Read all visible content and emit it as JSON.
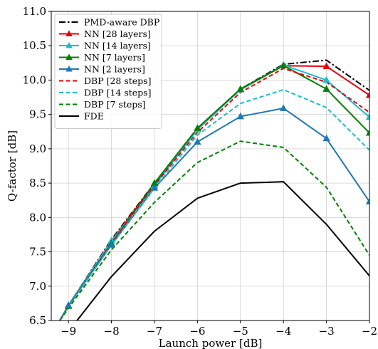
{
  "chart_data": {
    "type": "line",
    "title": "",
    "xlabel": "Launch power [dB]",
    "ylabel": "Q-factor [dB]",
    "xlim": [
      -9.4,
      -2
    ],
    "ylim": [
      6.5,
      11.0
    ],
    "xticks": [
      -9,
      -8,
      -7,
      -6,
      -5,
      -4,
      -3,
      -2
    ],
    "xtick_labels": [
      "−9",
      "−8",
      "−7",
      "−6",
      "−5",
      "−4",
      "−3",
      "−2"
    ],
    "yticks": [
      6.5,
      7.0,
      7.5,
      8.0,
      8.5,
      9.0,
      9.5,
      10.0,
      10.5,
      11.0
    ],
    "ytick_labels": [
      "6.5",
      "7.0",
      "7.5",
      "8.0",
      "8.5",
      "9.0",
      "9.5",
      "10.0",
      "10.5",
      "11.0"
    ],
    "grid": true,
    "legend_position": "top-left",
    "x": [
      -9,
      -8,
      -7,
      -6,
      -5,
      -4,
      -3,
      -2
    ],
    "series": [
      {
        "name": "PMD-aware DBP",
        "color": "#000000",
        "dash": "dashdot",
        "marker": "none",
        "x": [
          -9.2,
          -9,
          -8,
          -7,
          -6,
          -5,
          -4,
          -3,
          -2
        ],
        "values": [
          6.5,
          6.72,
          7.68,
          8.5,
          9.3,
          9.87,
          10.23,
          10.29,
          9.85
        ]
      },
      {
        "name": "NN [28 layers]",
        "color": "#e8000b",
        "dash": "solid",
        "marker": "triangle",
        "x": [
          -9.2,
          -9,
          -8,
          -7,
          -6,
          -5,
          -4,
          -3,
          -2
        ],
        "values": [
          6.5,
          6.72,
          7.66,
          8.49,
          9.29,
          9.86,
          10.21,
          10.2,
          9.78
        ]
      },
      {
        "name": "NN [14 layers]",
        "color": "#17becf",
        "dash": "solid",
        "marker": "triangle",
        "x": [
          -9.2,
          -9,
          -8,
          -7,
          -6,
          -5,
          -4,
          -3,
          -2
        ],
        "values": [
          6.5,
          6.72,
          7.66,
          8.46,
          9.28,
          9.86,
          10.22,
          10.0,
          9.46
        ]
      },
      {
        "name": "NN [7 layers]",
        "color": "#008000",
        "dash": "solid",
        "marker": "triangle",
        "x": [
          -9.2,
          -9,
          -8,
          -7,
          -6,
          -5,
          -4,
          -3,
          -2
        ],
        "values": [
          6.5,
          6.71,
          7.62,
          8.5,
          9.3,
          9.87,
          10.21,
          9.87,
          9.23
        ]
      },
      {
        "name": "NN [2 layers]",
        "color": "#1f77b4",
        "dash": "solid",
        "marker": "triangle",
        "x": [
          -9.2,
          -9,
          -8,
          -7,
          -6,
          -5,
          -4,
          -3,
          -2
        ],
        "values": [
          6.5,
          6.72,
          7.6,
          8.43,
          9.1,
          9.47,
          9.59,
          9.15,
          8.23
        ]
      },
      {
        "name": "DBP [28 steps]",
        "color": "#e8000b",
        "dash": "dashed",
        "marker": "none",
        "x": [
          -9.2,
          -9,
          -8,
          -7,
          -6,
          -5,
          -4,
          -3,
          -2
        ],
        "values": [
          6.5,
          6.7,
          7.63,
          8.47,
          9.24,
          9.82,
          10.17,
          9.97,
          9.53
        ]
      },
      {
        "name": "DBP [14 steps]",
        "color": "#17becf",
        "dash": "dashed",
        "marker": "none",
        "x": [
          -9.2,
          -9,
          -8,
          -7,
          -6,
          -5,
          -4,
          -3,
          -2
        ],
        "values": [
          6.5,
          6.7,
          7.6,
          8.43,
          9.2,
          9.66,
          9.86,
          9.6,
          8.98
        ]
      },
      {
        "name": "DBP [7 steps]",
        "color": "#008000",
        "dash": "dashed",
        "marker": "none",
        "x": [
          -9.2,
          -9,
          -8,
          -7,
          -6,
          -5,
          -4,
          -3,
          -2
        ],
        "values": [
          6.5,
          6.68,
          7.53,
          8.22,
          8.8,
          9.11,
          9.02,
          8.44,
          7.45
        ]
      },
      {
        "name": "FDE",
        "color": "#000000",
        "dash": "solid",
        "marker": "none",
        "x": [
          -8.8,
          -8,
          -7,
          -6,
          -5,
          -4,
          -3,
          -2
        ],
        "values": [
          6.5,
          7.14,
          7.8,
          8.28,
          8.5,
          8.52,
          7.9,
          7.15
        ]
      }
    ]
  }
}
